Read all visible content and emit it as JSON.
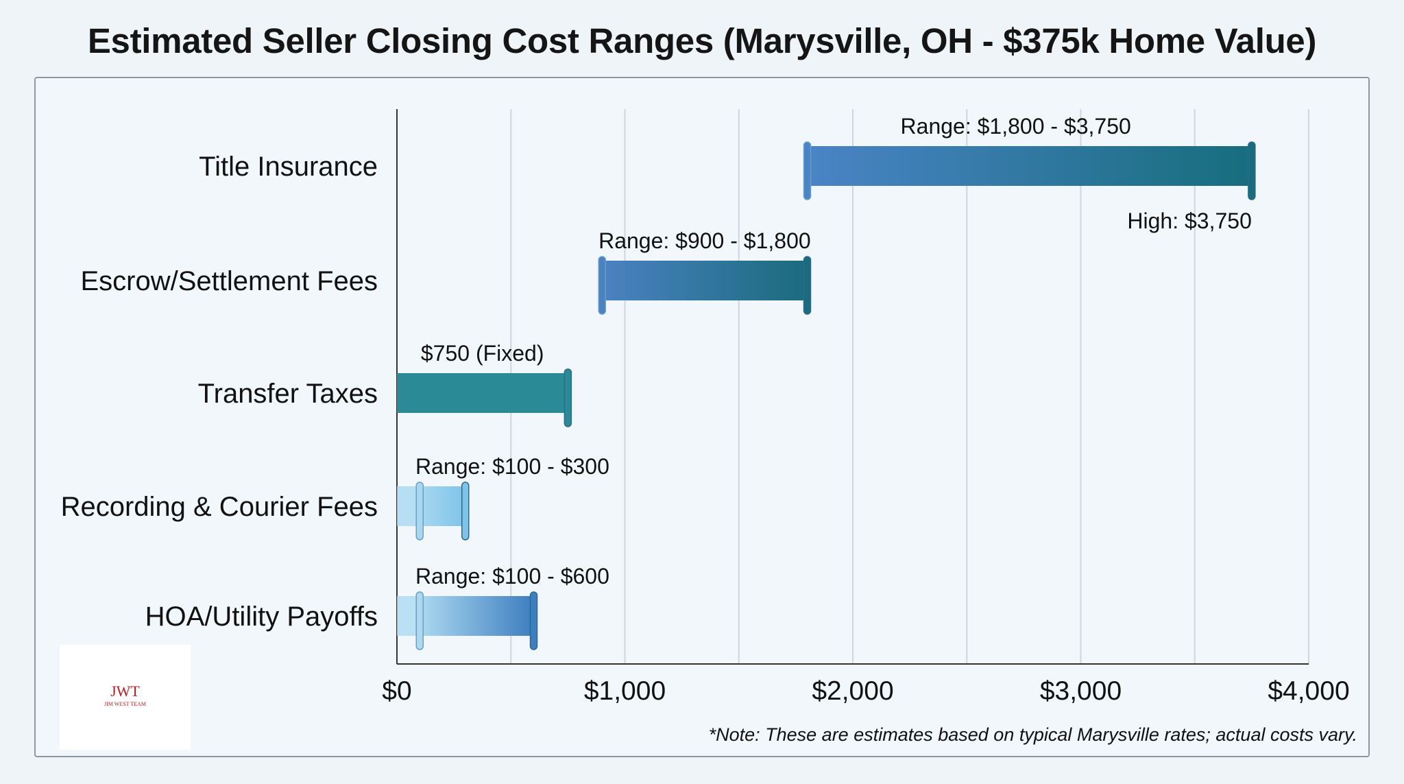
{
  "chart_data": {
    "type": "bar",
    "subtype": "horizontal-range",
    "title": "Estimated Seller Closing Cost Ranges (Marysville, OH - $375k Home Value)",
    "xlabel": "",
    "ylabel": "",
    "xlim": [
      0,
      4000
    ],
    "xticks": [
      0,
      1000,
      2000,
      3000,
      4000
    ],
    "xtick_labels": [
      "$0",
      "$1,000",
      "$2,000",
      "$3,000",
      "$4,000"
    ],
    "grid": "vertical",
    "categories": [
      "Title Insurance",
      "Escrow/Settlement Fees",
      "Transfer Taxes",
      "Recording & Courier Fees",
      "HOA/Utility Payoffs"
    ],
    "series": [
      {
        "category": "Title Insurance",
        "low": 1800,
        "high": 3750,
        "label": "Range: $1,800 - $3,750",
        "extra_label": "High: $3,750",
        "colors": [
          "#4a84c6",
          "#176d7d"
        ]
      },
      {
        "category": "Escrow/Settlement Fees",
        "low": 900,
        "high": 1800,
        "label": "Range: $900 - $1,800",
        "colors": [
          "#4b82c2",
          "#1a6b7d"
        ]
      },
      {
        "category": "Transfer Taxes",
        "low": 0,
        "high": 750,
        "label": "$750 (Fixed)",
        "colors": [
          "#2a8b96",
          "#2a8b96"
        ]
      },
      {
        "category": "Recording & Courier Fees",
        "low": 100,
        "high": 300,
        "label": "Range: $100 - $300",
        "colors": [
          "#a8d8f1",
          "#7fc3e8"
        ]
      },
      {
        "category": "HOA/Utility Payoffs",
        "low": 100,
        "high": 600,
        "label": "Range: $100 - $600",
        "colors": [
          "#acd9f1",
          "#3d7ebf"
        ]
      }
    ],
    "note": "*Note: These are estimates based on typical Marysville rates; actual costs vary."
  },
  "logo": {
    "text": "JWT",
    "subtext": "JIM WEST TEAM"
  }
}
